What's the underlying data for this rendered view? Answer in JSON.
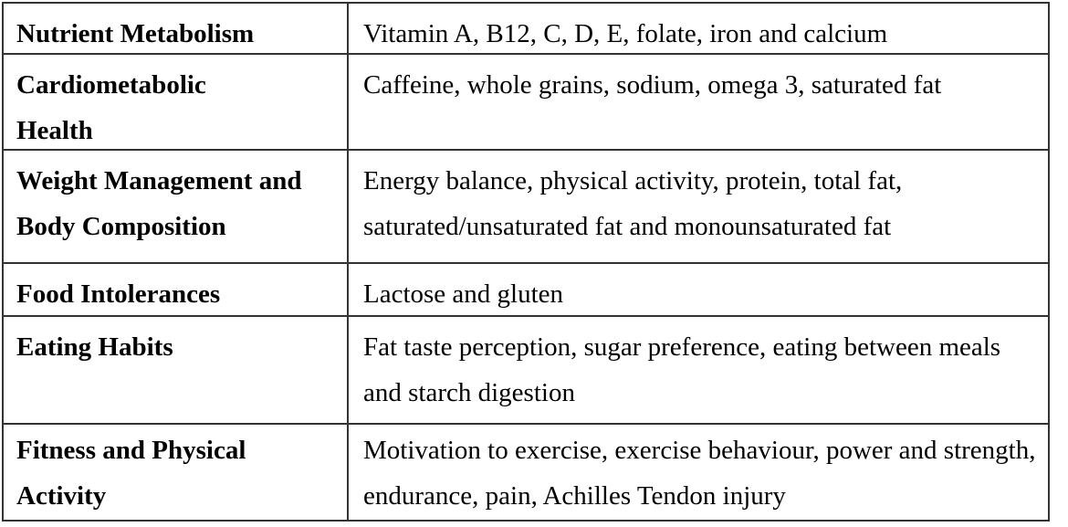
{
  "table": {
    "rows": [
      {
        "category": "Nutrient Metabolism",
        "details": "Vitamin A, B12, C, D, E, folate, iron and calcium"
      },
      {
        "category": "Cardiometabolic Health",
        "details": "Caffeine, whole grains, sodium, omega 3, saturated fat"
      },
      {
        "category": "Weight Management and Body Composition",
        "details": "Energy balance, physical activity, protein, total fat, saturated/unsaturated fat and monounsaturated fat"
      },
      {
        "category": "Food Intolerances",
        "details": "Lactose and gluten"
      },
      {
        "category": "Eating Habits",
        "details": "Fat taste perception, sugar preference, eating between meals and starch digestion"
      },
      {
        "category": "Fitness and Physical Activity",
        "details": "Motivation to exercise, exercise behaviour, power and strength, endurance, pain, Achilles Tendon injury"
      }
    ]
  }
}
